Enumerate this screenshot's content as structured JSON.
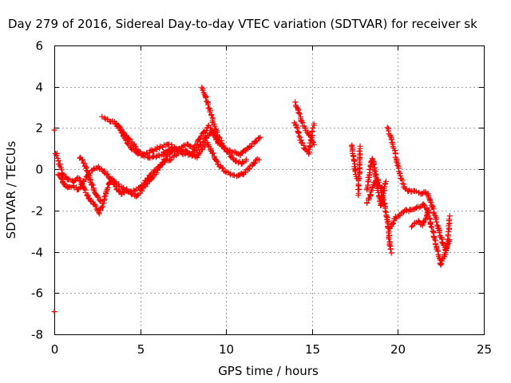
{
  "chart_data": {
    "type": "scatter",
    "title": "Day 279 of 2016, Sidereal Day-to-day VTEC variation (SDTVAR) for receiver sk",
    "xlabel": "GPS time / hours",
    "ylabel": "SDTVAR / TECUs",
    "xlim": [
      0,
      25
    ],
    "ylim": [
      -8,
      6
    ],
    "xticks": [
      "0",
      "5",
      "10",
      "15",
      "20",
      "25"
    ],
    "yticks": [
      "6",
      "4",
      "2",
      "0",
      "-2",
      "-4",
      "-6",
      "-8"
    ],
    "grid": true,
    "marker": "plus",
    "color": "#ff0000",
    "series": [
      {
        "tracks": [
          [
            [
              0.0,
              1.9
            ],
            [
              0.0,
              -6.9
            ]
          ],
          [
            [
              0.1,
              0.8
            ],
            [
              0.3,
              0.2
            ],
            [
              0.5,
              -0.3
            ],
            [
              0.8,
              -0.5
            ],
            [
              1.1,
              -0.6
            ],
            [
              1.4,
              -0.4
            ],
            [
              1.7,
              -0.9
            ],
            [
              2.0,
              -1.4
            ],
            [
              2.3,
              -1.7
            ],
            [
              2.6,
              -2.1
            ],
            [
              2.8,
              -1.8
            ],
            [
              3.0,
              -1.1
            ],
            [
              3.3,
              -0.5
            ],
            [
              3.6,
              -0.9
            ],
            [
              3.9,
              -1.2
            ],
            [
              4.2,
              -1.0
            ],
            [
              4.5,
              -1.2
            ],
            [
              4.8,
              -1.3
            ],
            [
              5.1,
              -1.0
            ],
            [
              5.4,
              -0.7
            ],
            [
              5.7,
              -0.4
            ],
            [
              6.0,
              -0.1
            ],
            [
              6.3,
              0.3
            ],
            [
              6.6,
              0.7
            ],
            [
              6.9,
              0.9
            ],
            [
              7.2,
              1.0
            ],
            [
              7.5,
              1.1
            ],
            [
              7.8,
              1.2
            ],
            [
              8.1,
              1.0
            ],
            [
              8.4,
              1.4
            ],
            [
              8.7,
              1.8
            ],
            [
              9.0,
              2.1
            ],
            [
              9.3,
              1.7
            ],
            [
              9.6,
              1.2
            ],
            [
              9.9,
              1.0
            ],
            [
              10.2,
              0.9
            ],
            [
              10.5,
              0.8
            ],
            [
              10.8,
              0.7
            ],
            [
              11.1,
              0.9
            ],
            [
              11.4,
              1.1
            ],
            [
              11.7,
              1.3
            ],
            [
              12.0,
              1.6
            ]
          ],
          [
            [
              0.2,
              -0.2
            ],
            [
              0.5,
              -0.6
            ],
            [
              0.8,
              -0.9
            ],
            [
              1.1,
              -0.8
            ],
            [
              1.4,
              -1.0
            ],
            [
              1.7,
              -0.6
            ],
            [
              2.0,
              -0.2
            ],
            [
              2.3,
              0.0
            ],
            [
              2.6,
              0.1
            ],
            [
              2.9,
              -0.1
            ],
            [
              3.2,
              -0.4
            ],
            [
              3.5,
              -0.6
            ],
            [
              3.8,
              -0.8
            ],
            [
              4.1,
              -1.0
            ],
            [
              4.4,
              -1.1
            ],
            [
              4.7,
              -1.0
            ],
            [
              5.0,
              -0.9
            ],
            [
              5.3,
              -0.6
            ],
            [
              5.6,
              -0.3
            ],
            [
              5.9,
              0.0
            ],
            [
              6.2,
              0.2
            ],
            [
              6.5,
              0.4
            ],
            [
              6.8,
              0.5
            ],
            [
              7.1,
              0.7
            ],
            [
              7.4,
              0.9
            ],
            [
              7.7,
              0.9
            ],
            [
              8.0,
              0.7
            ],
            [
              8.3,
              0.6
            ],
            [
              8.6,
              1.0
            ],
            [
              8.9,
              1.3
            ],
            [
              9.2,
              0.8
            ],
            [
              9.5,
              0.3
            ],
            [
              9.8,
              0.0
            ],
            [
              10.1,
              -0.2
            ],
            [
              10.4,
              -0.3
            ],
            [
              10.7,
              -0.3
            ],
            [
              11.0,
              -0.2
            ],
            [
              11.3,
              0.0
            ],
            [
              11.6,
              0.3
            ],
            [
              11.9,
              0.5
            ]
          ],
          [
            [
              1.5,
              0.6
            ],
            [
              1.8,
              0.2
            ],
            [
              2.1,
              -0.5
            ],
            [
              2.4,
              -1.2
            ],
            [
              2.7,
              -1.6
            ]
          ],
          [
            [
              2.8,
              2.5
            ],
            [
              3.1,
              2.4
            ],
            [
              3.4,
              2.3
            ],
            [
              3.7,
              2.1
            ],
            [
              4.0,
              1.8
            ],
            [
              4.3,
              1.5
            ],
            [
              4.6,
              1.2
            ],
            [
              4.9,
              0.9
            ],
            [
              5.2,
              0.7
            ],
            [
              5.5,
              0.6
            ],
            [
              5.8,
              0.6
            ],
            [
              6.1,
              0.7
            ],
            [
              6.4,
              0.8
            ],
            [
              6.7,
              0.9
            ],
            [
              7.0,
              1.0
            ],
            [
              7.3,
              0.9
            ],
            [
              7.6,
              0.8
            ],
            [
              7.9,
              0.7
            ],
            [
              8.2,
              0.9
            ],
            [
              8.5,
              1.2
            ],
            [
              8.8,
              1.5
            ],
            [
              9.1,
              1.8
            ],
            [
              9.4,
              1.6
            ],
            [
              9.7,
              1.2
            ],
            [
              10.0,
              0.9
            ],
            [
              10.3,
              0.6
            ],
            [
              10.6,
              0.4
            ],
            [
              10.9,
              0.3
            ],
            [
              11.2,
              0.5
            ]
          ],
          [
            [
              3.6,
              2.2
            ],
            [
              3.9,
              1.8
            ],
            [
              4.2,
              1.3
            ],
            [
              4.5,
              1.0
            ],
            [
              4.8,
              0.8
            ],
            [
              5.1,
              0.7
            ],
            [
              5.4,
              0.8
            ],
            [
              5.7,
              0.9
            ],
            [
              6.0,
              1.0
            ],
            [
              6.3,
              1.1
            ],
            [
              6.6,
              1.2
            ],
            [
              6.9,
              1.1
            ],
            [
              7.2,
              0.9
            ],
            [
              7.5,
              0.7
            ]
          ],
          [
            [
              8.6,
              4.0
            ],
            [
              8.8,
              3.5
            ],
            [
              9.0,
              3.0
            ],
            [
              9.2,
              2.4
            ],
            [
              9.4,
              1.9
            ],
            [
              9.6,
              1.5
            ],
            [
              9.8,
              1.2
            ]
          ],
          [
            [
              14.0,
              3.2
            ],
            [
              14.2,
              2.8
            ],
            [
              14.4,
              2.3
            ],
            [
              14.6,
              2.0
            ],
            [
              14.8,
              1.7
            ],
            [
              15.0,
              1.4
            ],
            [
              15.1,
              1.2
            ]
          ],
          [
            [
              14.0,
              2.3
            ],
            [
              14.2,
              1.8
            ],
            [
              14.4,
              1.3
            ],
            [
              14.6,
              1.0
            ],
            [
              14.8,
              0.8
            ],
            [
              15.0,
              1.6
            ],
            [
              15.1,
              2.2
            ]
          ],
          [
            [
              17.3,
              1.2
            ],
            [
              17.4,
              0.6
            ],
            [
              17.5,
              0.0
            ],
            [
              17.6,
              -0.4
            ]
          ],
          [
            [
              17.7,
              -1.2
            ],
            [
              17.8,
              1.1
            ]
          ],
          [
            [
              18.2,
              -1.0
            ],
            [
              18.3,
              -0.4
            ],
            [
              18.4,
              0.2
            ],
            [
              18.5,
              0.5
            ],
            [
              18.6,
              0.2
            ],
            [
              18.7,
              -0.3
            ],
            [
              18.8,
              -0.8
            ],
            [
              18.9,
              -1.3
            ],
            [
              19.0,
              -1.7
            ],
            [
              19.1,
              -1.4
            ],
            [
              19.2,
              -0.9
            ],
            [
              19.3,
              -0.6
            ]
          ],
          [
            [
              18.2,
              -1.7
            ],
            [
              18.4,
              -1.2
            ],
            [
              18.6,
              -0.7
            ],
            [
              18.8,
              -0.5
            ],
            [
              19.0,
              -0.9
            ],
            [
              19.2,
              -1.6
            ],
            [
              19.4,
              -2.5
            ],
            [
              19.5,
              -3.5
            ],
            [
              19.6,
              -4.0
            ]
          ],
          [
            [
              19.4,
              2.0
            ],
            [
              19.6,
              1.5
            ],
            [
              19.8,
              0.9
            ],
            [
              20.0,
              0.2
            ],
            [
              20.2,
              -0.5
            ],
            [
              20.4,
              -0.9
            ],
            [
              20.6,
              -1.0
            ],
            [
              20.8,
              -1.1
            ],
            [
              21.0,
              -1.0
            ],
            [
              21.2,
              -1.1
            ],
            [
              21.4,
              -1.2
            ],
            [
              21.6,
              -1.1
            ],
            [
              21.8,
              -1.3
            ],
            [
              22.0,
              -1.8
            ],
            [
              22.2,
              -2.4
            ],
            [
              22.4,
              -3.0
            ],
            [
              22.6,
              -3.6
            ],
            [
              22.8,
              -3.9
            ],
            [
              23.0,
              -3.4
            ]
          ],
          [
            [
              19.5,
              -2.9
            ],
            [
              19.7,
              -2.6
            ],
            [
              19.9,
              -2.3
            ],
            [
              20.1,
              -2.2
            ],
            [
              20.3,
              -2.1
            ],
            [
              20.5,
              -2.0
            ],
            [
              20.7,
              -2.0
            ],
            [
              20.9,
              -1.9
            ],
            [
              21.1,
              -1.9
            ],
            [
              21.3,
              -1.8
            ],
            [
              21.5,
              -1.7
            ],
            [
              21.7,
              -2.0
            ],
            [
              21.9,
              -2.6
            ],
            [
              22.1,
              -3.3
            ],
            [
              22.3,
              -4.0
            ],
            [
              22.5,
              -4.6
            ],
            [
              22.7,
              -4.2
            ],
            [
              22.9,
              -3.6
            ],
            [
              23.0,
              -2.3
            ]
          ],
          [
            [
              20.8,
              -2.8
            ],
            [
              21.0,
              -2.6
            ],
            [
              21.2,
              -2.5
            ],
            [
              21.4,
              -2.7
            ],
            [
              21.6,
              -2.4
            ],
            [
              21.8,
              -2.0
            ]
          ]
        ]
      }
    ]
  }
}
